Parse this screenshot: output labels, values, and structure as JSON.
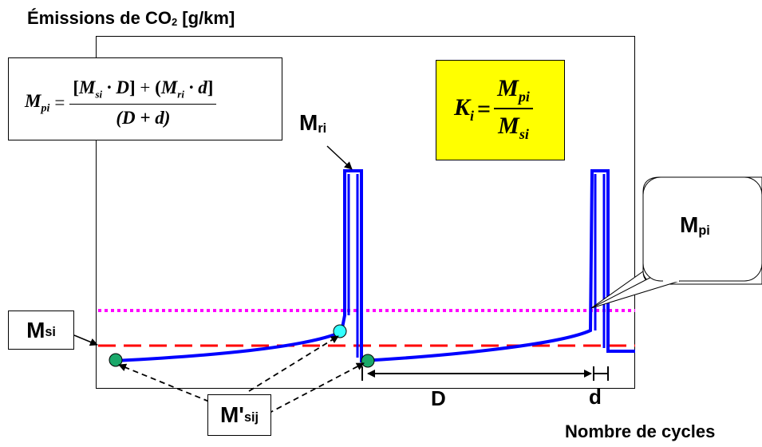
{
  "title": {
    "main": "Émissions de CO",
    "sub": "2",
    "unit": " [g/km]"
  },
  "formula_mpi": {
    "lhs": "M",
    "lhs_sub": "pi",
    "eq": " =",
    "numerator": "[M·D] + (M·d]",
    "numerator_parts": {
      "lb": "[",
      "m1": "M",
      "s1": "si",
      "dot1": " · D",
      "rb": "]",
      "plus": " + ",
      "lp": "(",
      "m2": "M",
      "s2": "ri",
      "dot2": " · d",
      "rp": "]"
    },
    "denominator": "(D + d)"
  },
  "formula_ki": {
    "lhs": "K",
    "lhs_sub": "i",
    "eq": "=",
    "num": "M",
    "num_sub": "pi",
    "den": "M",
    "den_sub": "si"
  },
  "labels": {
    "mri": {
      "main": "M",
      "sub": "ri"
    },
    "mpi": {
      "main": "M",
      "sub": "pi"
    },
    "msi": {
      "main": "M",
      "sub": "si"
    },
    "msij": {
      "main": "M'",
      "sub": "sij"
    },
    "D": "D",
    "d": "d",
    "xaxis": "Nombre de cycles"
  },
  "colors": {
    "curve": "#0000ff",
    "msi_line": "#ff0000",
    "mpi_line": "#ff00ff",
    "marker_green": "#1aa86a",
    "marker_cyan": "#33ffff",
    "ki_box": "#ffff00"
  }
}
